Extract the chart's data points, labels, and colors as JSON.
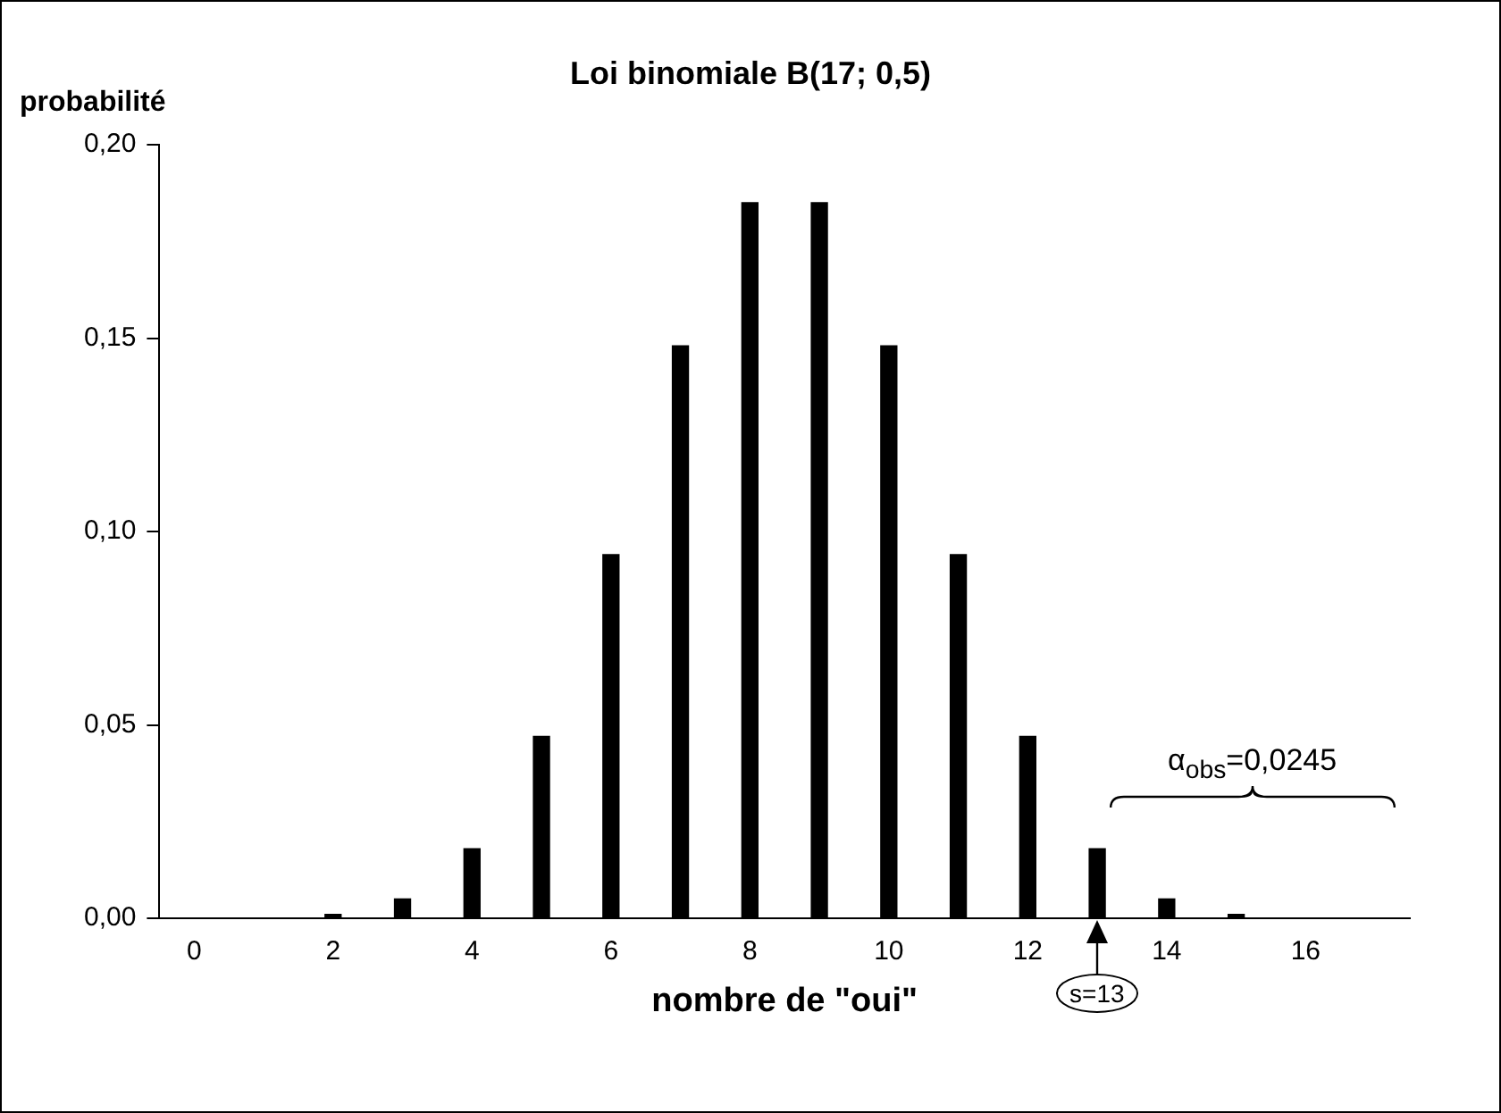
{
  "chart_data": {
    "type": "bar",
    "title": "Loi binomiale B(17; 0,5)",
    "xlabel": "nombre de \"oui\"",
    "ylabel": "probabilité",
    "x": [
      0,
      1,
      2,
      3,
      4,
      5,
      6,
      7,
      8,
      9,
      10,
      11,
      12,
      13,
      14,
      15,
      16,
      17
    ],
    "values": [
      0,
      0,
      0.001,
      0.005,
      0.018,
      0.047,
      0.094,
      0.148,
      0.185,
      0.185,
      0.148,
      0.094,
      0.047,
      0.018,
      0.005,
      0.001,
      0,
      0
    ],
    "color": "#000000",
    "xlim": [
      -0.5,
      17.5
    ],
    "xticks": [
      0,
      2,
      4,
      6,
      8,
      10,
      12,
      14,
      16
    ],
    "ylim": [
      0,
      0.2
    ],
    "yticks": [
      {
        "value": 0,
        "label": "0,00"
      },
      {
        "value": 0.05,
        "label": "0,05"
      },
      {
        "value": 0.1,
        "label": "0,10"
      },
      {
        "value": 0.15,
        "label": "0,15"
      },
      {
        "value": 0.2,
        "label": "0,20"
      }
    ],
    "grid": false,
    "legend": false,
    "annotations": [
      "α$_{obs}$=0,0245",
      {
        "text": "s=13",
        "x": 13,
        "y": 0
      }
    ]
  }
}
